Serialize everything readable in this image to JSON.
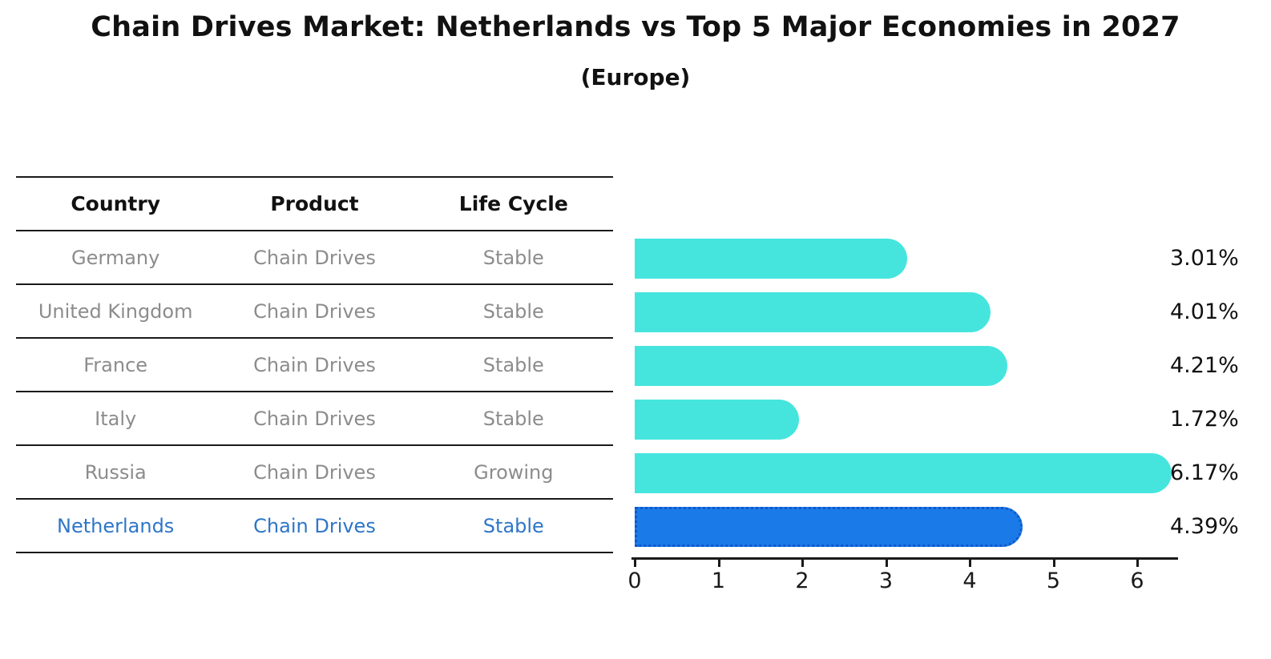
{
  "title": "Chain Drives Market: Netherlands vs Top 5 Major Economies in 2027",
  "subtitle": "(Europe)",
  "table": {
    "headers": [
      "Country",
      "Product",
      "Life Cycle"
    ],
    "rows": [
      {
        "country": "Germany",
        "product": "Chain Drives",
        "life_cycle": "Stable",
        "highlighted": false
      },
      {
        "country": "United Kingdom",
        "product": "Chain Drives",
        "life_cycle": "Stable",
        "highlighted": false
      },
      {
        "country": "France",
        "product": "Chain Drives",
        "life_cycle": "Stable",
        "highlighted": false
      },
      {
        "country": "Italy",
        "product": "Chain Drives",
        "life_cycle": "Stable",
        "highlighted": false
      },
      {
        "country": "Russia",
        "product": "Chain Drives",
        "life_cycle": "Growing",
        "highlighted": false
      },
      {
        "country": "Netherlands",
        "product": "Chain Drives",
        "life_cycle": "Stable",
        "highlighted": true
      }
    ]
  },
  "chart_data": {
    "type": "bar",
    "orientation": "horizontal",
    "title": "Chain Drives Market: Netherlands vs Top 5 Major Economies in 2027",
    "subtitle": "(Europe)",
    "categories": [
      "Germany",
      "United Kingdom",
      "France",
      "Italy",
      "Russia",
      "Netherlands"
    ],
    "values": [
      3.01,
      4.01,
      4.21,
      1.72,
      6.17,
      4.39
    ],
    "value_labels": [
      "3.01%",
      "4.01%",
      "4.21%",
      "1.72%",
      "6.17%",
      "4.39%"
    ],
    "highlight_index": 5,
    "xticks": [
      "0",
      "1",
      "2",
      "3",
      "4",
      "5",
      "6"
    ],
    "xlim": [
      0,
      6.5
    ],
    "grid": false,
    "legend": false
  },
  "colors": {
    "bar": "#45e5de",
    "highlight_bar": "#1a7ae8",
    "highlight_border": "#0f58cc",
    "highlight_text": "#2e76c8",
    "table_text": "#8c8c8c",
    "line": "#1a1a1a"
  }
}
